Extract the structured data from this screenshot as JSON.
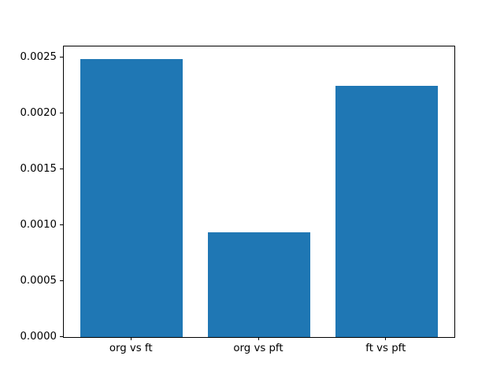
{
  "chart_data": {
    "type": "bar",
    "title": "",
    "xlabel": "",
    "ylabel": "",
    "categories": [
      "org vs ft",
      "org vs pft",
      "ft vs pft"
    ],
    "values": [
      0.00249,
      0.00094,
      0.00225
    ],
    "bar_color": "#1f77b4",
    "bar_width_fraction": 0.8,
    "ylim": [
      0,
      0.0026
    ],
    "xlim": [
      -0.5325,
      2.5325
    ],
    "yticks": [
      {
        "value": 0.0,
        "label": "0.0000"
      },
      {
        "value": 0.0005,
        "label": "0.0005"
      },
      {
        "value": 0.001,
        "label": "0.0010"
      },
      {
        "value": 0.0015,
        "label": "0.0015"
      },
      {
        "value": 0.002,
        "label": "0.0020"
      },
      {
        "value": 0.0025,
        "label": "0.0025"
      }
    ],
    "grid": false,
    "legend": false,
    "spine_color": "#000000",
    "background_color": "#ffffff"
  }
}
